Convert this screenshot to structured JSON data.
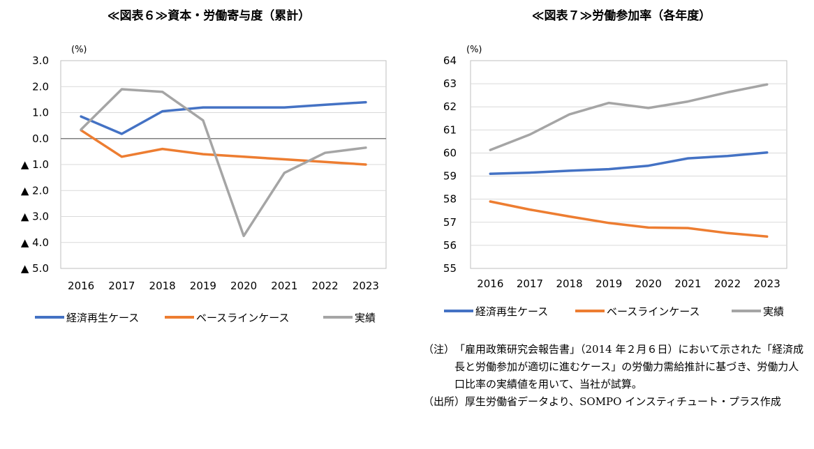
{
  "chart_data": [
    {
      "type": "line",
      "title": "≪図表６≫資本・労働寄与度（累計）",
      "unit_label": "(%)",
      "x": [
        "2016",
        "2017",
        "2018",
        "2019",
        "2020",
        "2021",
        "2022",
        "2023"
      ],
      "ylim": [
        -5.0,
        3.0
      ],
      "yticks": [
        3.0,
        2.0,
        1.0,
        0.0,
        -1.0,
        -2.0,
        -3.0,
        -4.0,
        -5.0
      ],
      "ytick_labels": [
        "3.0",
        "2.0",
        "1.0",
        "0.0",
        "▲ 1.0",
        "▲ 2.0",
        "▲ 3.0",
        "▲ 4.0",
        "▲ 5.0"
      ],
      "grid": true,
      "legend_position": "bottom",
      "series": [
        {
          "name": "経済再生ケース",
          "color": "#4472C4",
          "values": [
            0.85,
            0.18,
            1.05,
            1.2,
            1.2,
            1.2,
            1.3,
            1.4
          ]
        },
        {
          "name": "ベースラインケース",
          "color": "#ED7D31",
          "values": [
            0.32,
            -0.7,
            -0.4,
            -0.6,
            -0.7,
            -0.8,
            -0.9,
            -1.0
          ]
        },
        {
          "name": "実績",
          "color": "#A5A5A5",
          "values": [
            0.35,
            1.9,
            1.8,
            0.7,
            -3.75,
            -1.32,
            -0.55,
            -0.35
          ]
        }
      ]
    },
    {
      "type": "line",
      "title": "≪図表７≫労働参加率（各年度）",
      "unit_label": "(%)",
      "x": [
        "2016",
        "2017",
        "2018",
        "2019",
        "2020",
        "2021",
        "2022",
        "2023"
      ],
      "ylim": [
        55,
        64
      ],
      "yticks": [
        64,
        63,
        62,
        61,
        60,
        59,
        58,
        57,
        56,
        55
      ],
      "ytick_labels": [
        "64",
        "63",
        "62",
        "61",
        "60",
        "59",
        "58",
        "57",
        "56",
        "55"
      ],
      "grid": true,
      "legend_position": "bottom",
      "series": [
        {
          "name": "経済再生ケース",
          "color": "#4472C4",
          "values": [
            59.1,
            59.15,
            59.23,
            59.3,
            59.45,
            59.77,
            59.87,
            60.02
          ]
        },
        {
          "name": "ベースラインケース",
          "color": "#ED7D31",
          "values": [
            57.9,
            57.55,
            57.25,
            56.97,
            56.77,
            56.75,
            56.53,
            56.38
          ]
        },
        {
          "name": "実績",
          "color": "#A5A5A5",
          "values": [
            60.13,
            60.8,
            61.67,
            62.17,
            61.95,
            62.23,
            62.63,
            62.97
          ]
        }
      ]
    }
  ],
  "notes": [
    {
      "label": "（注）",
      "text": "「雇用政策研究会報告書」（2014 年２月６日）において示された「経済成長と労働参加が適切に進むケース」の労働力需給推計に基づき、労働力人口比率の実績値を用いて、当社が試算。"
    },
    {
      "label": "（出所）",
      "text": "厚生労働省データより、SOMPO インスティチュート・プラス作成"
    }
  ]
}
